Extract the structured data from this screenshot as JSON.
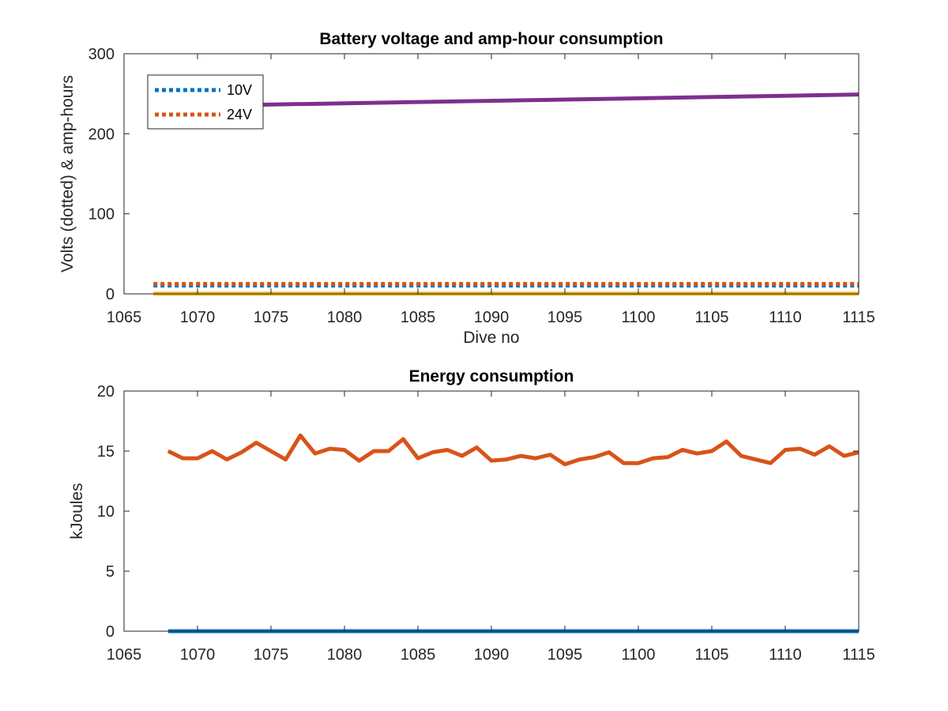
{
  "chart_data": [
    {
      "type": "line",
      "title": "Battery voltage and amp-hour consumption",
      "xlabel": "Dive no",
      "ylabel": "Volts (dotted) & amp-hours",
      "xlim": [
        1065,
        1115
      ],
      "ylim": [
        0,
        300
      ],
      "x_ticks": [
        1065,
        1070,
        1075,
        1080,
        1085,
        1090,
        1095,
        1100,
        1105,
        1110,
        1115
      ],
      "y_ticks": [
        0,
        100,
        200,
        300
      ],
      "grid": false,
      "legend_position": "top-left",
      "series": [
        {
          "name": "10V",
          "style": "dotted",
          "color": "#0072BD",
          "x": [
            1067,
            1115
          ],
          "y": [
            10.5,
            10.5
          ]
        },
        {
          "name": "24V",
          "style": "dotted",
          "color": "#D95319",
          "x": [
            1067,
            1115
          ],
          "y": [
            12.5,
            12.5
          ]
        },
        {
          "style": "solid",
          "color": "#7E2F8E",
          "x": [
            1067,
            1115
          ],
          "y": [
            234,
            249
          ]
        },
        {
          "style": "solid",
          "color": "#EDB120",
          "x": [
            1067,
            1115
          ],
          "y": [
            0.3,
            0.3
          ]
        }
      ]
    },
    {
      "type": "line",
      "title": "Energy consumption",
      "xlabel": "",
      "ylabel": "kJoules",
      "xlim": [
        1065,
        1115
      ],
      "ylim": [
        0,
        20
      ],
      "x_ticks": [
        1065,
        1070,
        1075,
        1080,
        1085,
        1090,
        1095,
        1100,
        1105,
        1110,
        1115
      ],
      "y_ticks": [
        0,
        5,
        10,
        15,
        20
      ],
      "grid": false,
      "series": [
        {
          "style": "solid",
          "color": "#0072BD",
          "x": [
            1068,
            1115
          ],
          "y": [
            0,
            0
          ]
        },
        {
          "style": "solid",
          "color": "#D95319",
          "x": [
            1068,
            1069,
            1070,
            1071,
            1072,
            1073,
            1074,
            1075,
            1076,
            1077,
            1078,
            1079,
            1080,
            1081,
            1082,
            1083,
            1084,
            1085,
            1086,
            1087,
            1088,
            1089,
            1090,
            1091,
            1092,
            1093,
            1094,
            1095,
            1096,
            1097,
            1098,
            1099,
            1100,
            1101,
            1102,
            1103,
            1104,
            1105,
            1106,
            1107,
            1108,
            1109,
            1110,
            1111,
            1112,
            1113,
            1114,
            1115
          ],
          "y": [
            15.0,
            14.4,
            14.4,
            15.0,
            14.3,
            14.9,
            15.7,
            15.0,
            14.3,
            16.3,
            14.8,
            15.2,
            15.1,
            14.2,
            15.0,
            15.0,
            16.0,
            14.4,
            14.9,
            15.1,
            14.6,
            15.3,
            14.2,
            14.3,
            14.6,
            14.4,
            14.7,
            13.9,
            14.3,
            14.5,
            14.9,
            14.0,
            14.0,
            14.4,
            14.5,
            15.1,
            14.8,
            15.0,
            15.8,
            14.6,
            14.3,
            14.0,
            15.1,
            15.2,
            14.7,
            15.4,
            14.6,
            14.9
          ]
        }
      ]
    }
  ]
}
